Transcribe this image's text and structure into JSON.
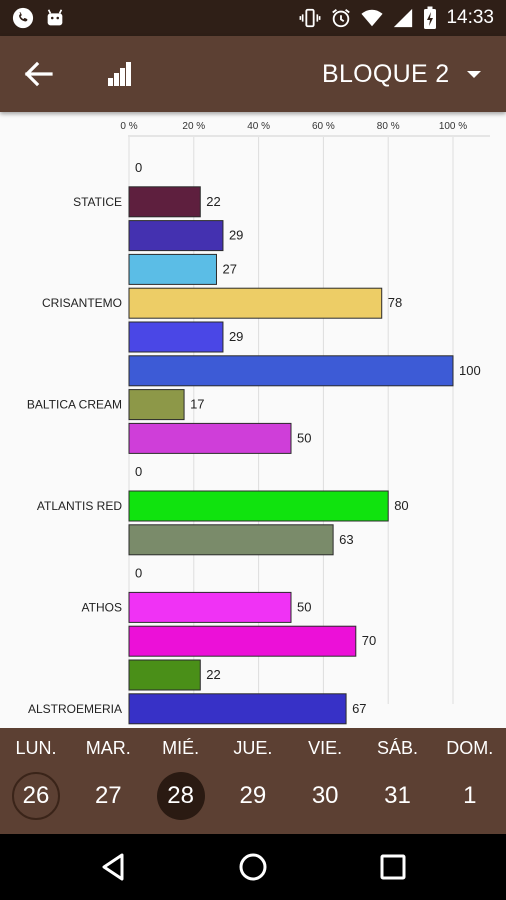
{
  "status_bar": {
    "time": "14:33",
    "icons": [
      "phone-icon",
      "android-icon",
      "vibrate-icon",
      "alarm-icon",
      "wifi-icon",
      "cell-signal-icon",
      "battery-charging-icon"
    ]
  },
  "app_bar": {
    "back_icon": "arrow-back-icon",
    "chart_icon": "signal-bars-icon",
    "title": "BLOQUE 2",
    "dropdown_icon": "arrow-drop-down-icon"
  },
  "chart_data": {
    "type": "bar",
    "orientation": "horizontal",
    "x_ticks": [
      "0 %",
      "20 %",
      "40 %",
      "60 %",
      "80 %",
      "100 %"
    ],
    "xlim": [
      0,
      100
    ],
    "grid": true,
    "bars": [
      {
        "label": "",
        "value": 0,
        "color": "#cccccc"
      },
      {
        "label": "STATICE",
        "value": 22,
        "color": "#5e1f3e"
      },
      {
        "label": "",
        "value": 29,
        "color": "#4431b0"
      },
      {
        "label": "",
        "value": 27,
        "color": "#5bbde6"
      },
      {
        "label": "CRISANTEMO",
        "value": 78,
        "color": "#edcd66"
      },
      {
        "label": "",
        "value": 29,
        "color": "#4a47e6"
      },
      {
        "label": "",
        "value": 100,
        "color": "#3d5bd6"
      },
      {
        "label": "BALTICA CREAM",
        "value": 17,
        "color": "#8d9848"
      },
      {
        "label": "",
        "value": 50,
        "color": "#cf3ed9"
      },
      {
        "label": "",
        "value": 0,
        "color": "#cccccc"
      },
      {
        "label": "ATLANTIS RED",
        "value": 80,
        "color": "#10e30e"
      },
      {
        "label": "",
        "value": 63,
        "color": "#7a8b6a"
      },
      {
        "label": "",
        "value": 0,
        "color": "#cccccc"
      },
      {
        "label": "ATHOS",
        "value": 50,
        "color": "#f032f5"
      },
      {
        "label": "",
        "value": 70,
        "color": "#ec10d8"
      },
      {
        "label": "",
        "value": 22,
        "color": "#4a8f18"
      },
      {
        "label": "ALSTROEMERIA",
        "value": 67,
        "color": "#3731c7"
      }
    ]
  },
  "calendar": {
    "days": [
      {
        "name": "LUN.",
        "num": "26",
        "state": "today"
      },
      {
        "name": "MAR.",
        "num": "27",
        "state": ""
      },
      {
        "name": "MIÉ.",
        "num": "28",
        "state": "selected"
      },
      {
        "name": "JUE.",
        "num": "29",
        "state": ""
      },
      {
        "name": "VIE.",
        "num": "30",
        "state": ""
      },
      {
        "name": "SÁB.",
        "num": "31",
        "state": ""
      },
      {
        "name": "DOM.",
        "num": "1",
        "state": ""
      }
    ]
  },
  "nav_bar": {
    "icons": [
      "back-triangle-icon",
      "home-circle-icon",
      "recents-square-icon"
    ]
  }
}
